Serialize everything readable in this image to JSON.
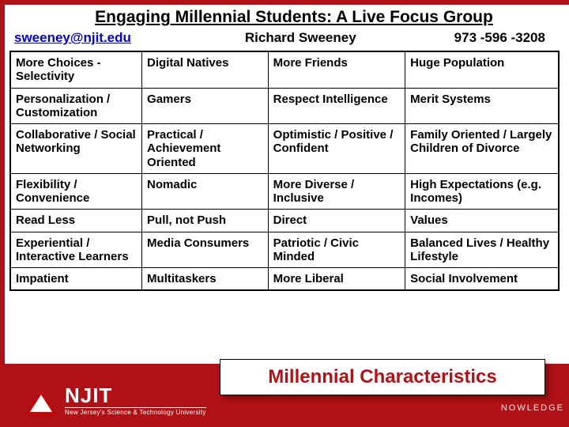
{
  "colors": {
    "brand_red": "#b01116",
    "label_red": "#b01116",
    "link_blue": "#0000cc",
    "black": "#000000",
    "white": "#ffffff"
  },
  "title": "Engaging Millennial Students: A Live Focus Group",
  "header": {
    "email": "sweeney@njit.edu",
    "name": "Richard Sweeney",
    "phone": "973 -596 -3208"
  },
  "table": {
    "rows": [
      [
        "More Choices - Selectivity",
        "Digital Natives",
        "More Friends",
        "Huge Population"
      ],
      [
        "Personalization / Customization",
        "Gamers",
        "Respect Intelligence",
        "Merit Systems"
      ],
      [
        "Collaborative / Social Networking",
        "Practical / Achievement Oriented",
        "Optimistic / Positive / Confident",
        "Family Oriented / Largely Children of Divorce"
      ],
      [
        "Flexibility / Convenience",
        "Nomadic",
        "More Diverse / Inclusive",
        "High Expectations (e.g. Incomes)"
      ],
      [
        "Read Less",
        "Pull, not Push",
        "Direct",
        "Values"
      ],
      [
        "Experiential / Interactive Learners",
        "Media Consumers",
        "Patriotic / Civic Minded",
        "Balanced Lives / Healthy Lifestyle"
      ],
      [
        "Impatient",
        "Multitaskers",
        "More Liberal",
        "Social Involvement"
      ]
    ]
  },
  "footer": {
    "label": "Millennial Characteristics",
    "logo_big": "NJIT",
    "logo_small": "New Jersey's Science & Technology University",
    "fragment": "NOWLEDGE"
  }
}
